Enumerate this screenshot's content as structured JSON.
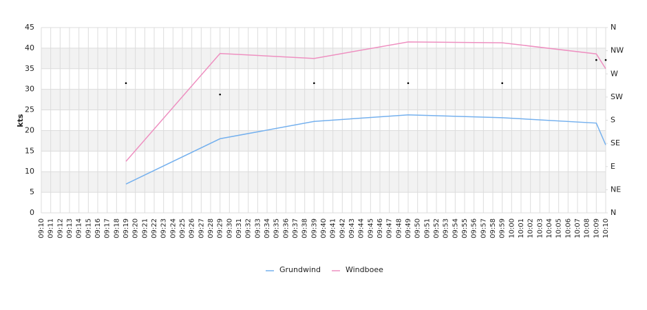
{
  "chart_data": {
    "type": "line",
    "y_title": "kts",
    "categories": [
      "09:10",
      "09:11",
      "09:12",
      "09:13",
      "09:14",
      "09:15",
      "09:16",
      "09:17",
      "09:18",
      "09:19",
      "09:20",
      "09:21",
      "09:22",
      "09:23",
      "09:24",
      "09:25",
      "09:26",
      "09:27",
      "09:28",
      "09:29",
      "09:30",
      "09:31",
      "09:32",
      "09:33",
      "09:34",
      "09:35",
      "09:36",
      "09:37",
      "09:38",
      "09:39",
      "09:40",
      "09:41",
      "09:42",
      "09:43",
      "09:44",
      "09:45",
      "09:46",
      "09:47",
      "09:48",
      "09:49",
      "09:50",
      "09:51",
      "09:52",
      "09:53",
      "09:54",
      "09:55",
      "09:56",
      "09:57",
      "09:58",
      "09:59",
      "10:00",
      "10:01",
      "10:02",
      "10:03",
      "10:04",
      "10:05",
      "10:06",
      "10:07",
      "10:08",
      "10:09",
      "10:10"
    ],
    "ylim": [
      0,
      45
    ],
    "yticks": [
      0,
      5,
      10,
      15,
      20,
      25,
      30,
      35,
      40,
      45
    ],
    "y2lim": [
      0,
      360
    ],
    "y2ticks": [
      {
        "value": 0,
        "label": "N"
      },
      {
        "value": 45,
        "label": "NE"
      },
      {
        "value": 90,
        "label": "E"
      },
      {
        "value": 135,
        "label": "SE"
      },
      {
        "value": 180,
        "label": "S"
      },
      {
        "value": 225,
        "label": "SW"
      },
      {
        "value": 270,
        "label": "W"
      },
      {
        "value": 315,
        "label": "NW"
      },
      {
        "value": 360,
        "label": "N"
      }
    ],
    "grid": true,
    "alternate_bands": true,
    "legend": "bottom",
    "series": [
      {
        "name": "Grundwind",
        "color": "#74b0ee",
        "x": [
          "09:19",
          "09:29",
          "09:39",
          "09:49",
          "09:59",
          "10:09",
          "10:10"
        ],
        "values": [
          7,
          18,
          22.2,
          23.8,
          23.1,
          21.8,
          16.5
        ]
      },
      {
        "name": "Windboee",
        "color": "#ee8fc0",
        "x": [
          "09:19",
          "09:29",
          "09:39",
          "09:49",
          "09:59",
          "10:09",
          "10:10"
        ],
        "values": [
          12.5,
          38.7,
          37.5,
          41.5,
          41.3,
          38.6,
          35
        ]
      },
      {
        "color": "#000000",
        "axis": "y2",
        "marker": "dot",
        "x": [
          "09:19",
          "09:29",
          "09:39",
          "09:49",
          "09:59",
          "10:09",
          "10:10"
        ],
        "values": [
          252,
          230,
          252,
          252,
          252,
          297,
          297
        ]
      }
    ]
  }
}
